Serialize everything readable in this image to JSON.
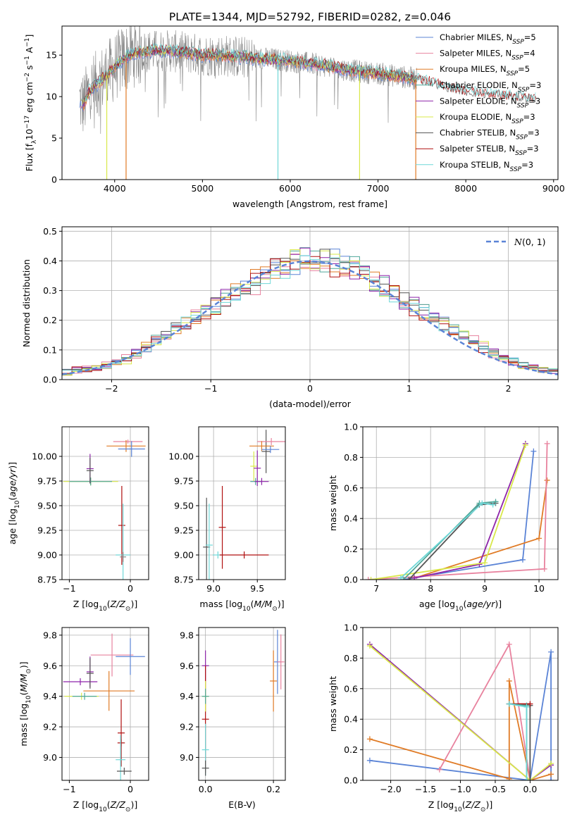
{
  "title": "PLATE=1344, MJD=52792, FIBERID=0282, z=0.046",
  "colors": {
    "blue": "#5b84d6",
    "pink": "#e8829e",
    "orange": "#e07b26",
    "teal": "#4fa89a",
    "purple": "#8e24aa",
    "yellow": "#d9e84a",
    "gray": "#555555",
    "red": "#b01010",
    "cyan": "#6fd8d8"
  },
  "chart_data": [
    {
      "id": "spectrum",
      "type": "line",
      "title": "PLATE=1344, MJD=52792, FIBERID=0282, z=0.046",
      "xlabel": "wavelength [Angstrom, rest frame]",
      "ylabel": "Flux [f",
      "xlim": [
        3400,
        9050
      ],
      "ylim": [
        0,
        18.5
      ],
      "xticks": [
        4000,
        5000,
        6000,
        7000,
        8000,
        9000
      ],
      "yticks": [
        0,
        5,
        10,
        15
      ],
      "grid": false,
      "legend_position": "top-right",
      "legend": [
        {
          "label": "Chabrier MILES, N",
          "suffix": "=5",
          "color": "#5b84d6"
        },
        {
          "label": "Salpeter MILES, N",
          "suffix": "=4",
          "color": "#e8829e"
        },
        {
          "label": "Kroupa MILES, N",
          "suffix": "=5",
          "color": "#e07b26"
        },
        {
          "label": "Chabrier ELODIE, N",
          "suffix": "=3",
          "color": "#4fa89a"
        },
        {
          "label": "Salpeter ELODIE, N",
          "suffix": "=3",
          "color": "#8e24aa"
        },
        {
          "label": "Kroupa ELODIE, N",
          "suffix": "=3",
          "color": "#d9e84a"
        },
        {
          "label": "Chabrier STELIB, N",
          "suffix": "=3",
          "color": "#555555"
        },
        {
          "label": "Salpeter STELIB, N",
          "suffix": "=3",
          "color": "#b01010"
        },
        {
          "label": "Kroupa STELIB, N",
          "suffix": "=3",
          "color": "#6fd8d8"
        }
      ],
      "observed": {
        "x_start": 3600,
        "x_end": 7440,
        "color": "#888888"
      },
      "model_envelope": {
        "x": [
          3600,
          3650,
          3700,
          3800,
          3900,
          4000,
          4100,
          4200,
          4400,
          4600,
          4800,
          5000,
          5200,
          5400,
          5600,
          5800,
          6000,
          6200,
          6400,
          6600,
          6800,
          7000,
          7200,
          7400,
          7600,
          7800,
          8000,
          8200,
          8400,
          8600,
          8800
        ],
        "y": [
          9.5,
          9.0,
          10.5,
          11.5,
          12.5,
          13.5,
          14.5,
          15.2,
          15.5,
          15.5,
          15.3,
          15.0,
          15.0,
          14.8,
          14.6,
          14.5,
          14.3,
          14.0,
          13.7,
          13.3,
          13.0,
          12.8,
          12.5,
          12.2,
          11.6,
          11.0,
          10.5,
          10.2,
          10.0,
          9.8,
          9.6
        ]
      },
      "model_dropouts_x": [
        3910,
        4130,
        5860,
        6790,
        7430
      ]
    },
    {
      "id": "residuals",
      "type": "line",
      "xlabel": "(data-model)/error",
      "ylabel": "Normed distribution",
      "xlim": [
        -2.5,
        2.5
      ],
      "ylim": [
        0,
        0.515
      ],
      "xticks": [
        -2,
        -1,
        0,
        1,
        2
      ],
      "yticks": [
        0.0,
        0.1,
        0.2,
        0.3,
        0.4,
        0.5
      ],
      "grid": true,
      "legend_position": "top-right",
      "legend": [
        {
          "label": "(0, 1)",
          "symbol": "N",
          "color": "#5b84d6",
          "style": "dashed"
        }
      ],
      "bin_width": 0.1,
      "base_hist": [
        0.025,
        0.03,
        0.035,
        0.04,
        0.05,
        0.06,
        0.07,
        0.09,
        0.11,
        0.13,
        0.15,
        0.17,
        0.19,
        0.21,
        0.23,
        0.25,
        0.27,
        0.29,
        0.31,
        0.33,
        0.35,
        0.37,
        0.38,
        0.39,
        0.4,
        0.4,
        0.4,
        0.39,
        0.38,
        0.37,
        0.35,
        0.33,
        0.31,
        0.29,
        0.27,
        0.25,
        0.23,
        0.21,
        0.19,
        0.17,
        0.15,
        0.13,
        0.11,
        0.09,
        0.075,
        0.06,
        0.05,
        0.04,
        0.035,
        0.03
      ],
      "series_colors": [
        "#5b84d6",
        "#e8829e",
        "#e07b26",
        "#4fa89a",
        "#8e24aa",
        "#d9e84a",
        "#555555",
        "#b01010",
        "#6fd8d8"
      ]
    },
    {
      "id": "age-vs-Z",
      "type": "scatter",
      "xlabel": "Z [log",
      "ylabel": "age  [log",
      "xlim": [
        -1.12,
        0.3
      ],
      "ylim": [
        8.75,
        10.3
      ],
      "xticks": [
        -1,
        0
      ],
      "yticks": [
        8.75,
        9.0,
        9.25,
        9.5,
        9.75,
        10.0
      ],
      "grid": true,
      "points": [
        {
          "x": -0.65,
          "y": 9.745,
          "xerr": 0.45,
          "yerr": 0.04,
          "color": "#d9e84a"
        },
        {
          "x": -0.65,
          "y": 9.745,
          "xerr": 0.35,
          "yerr": 0.04,
          "color": "#4fa89a"
        },
        {
          "x": -0.66,
          "y": 9.875,
          "xerr": 0.0,
          "yerr": 0.15,
          "color": "#8e24aa"
        },
        {
          "x": -0.66,
          "y": 9.855,
          "xerr": 0.0,
          "yerr": 0.13,
          "color": "#555555"
        },
        {
          "x": -0.04,
          "y": 10.15,
          "xerr": 0.24,
          "yerr": 0.02,
          "color": "#e8829e"
        },
        {
          "x": -0.07,
          "y": 10.105,
          "xerr": 0.32,
          "yerr": 0.06,
          "color": "#e07b26"
        },
        {
          "x": 0.02,
          "y": 10.075,
          "xerr": 0.22,
          "yerr": 0.08,
          "color": "#5b84d6"
        },
        {
          "x": -0.14,
          "y": 9.3,
          "xerr": 0.0,
          "yerr": 0.4,
          "color": "#b01010"
        },
        {
          "x": -0.12,
          "y": 9.0,
          "xerr": 0.12,
          "yerr": 0.52,
          "color": "#6fd8d8"
        },
        {
          "x": -0.12,
          "y": 8.98,
          "xerr": 0.05,
          "yerr": 0.05,
          "color": "#888888"
        }
      ]
    },
    {
      "id": "age-vs-mass",
      "type": "scatter",
      "xlabel": "mass [log",
      "ylabel": "",
      "xlim": [
        8.83,
        9.82
      ],
      "ylim": [
        8.75,
        10.3
      ],
      "xticks": [
        9.0,
        9.5
      ],
      "yticks": [
        8.75,
        9.0,
        9.25,
        9.5,
        9.75,
        10.0
      ],
      "grid": true,
      "points": [
        {
          "x": 8.92,
          "y": 9.08,
          "xerr": 0.0,
          "yerr": 0.5,
          "color": "#555555"
        },
        {
          "x": 8.95,
          "y": 9.1,
          "xerr": 0.0,
          "yerr": 0.42,
          "color": "#6fd8d8"
        },
        {
          "x": 9.1,
          "y": 9.28,
          "xerr": 0.0,
          "yerr": 0.42,
          "color": "#b01010"
        },
        {
          "x": 9.05,
          "y": 9.0,
          "xerr": 0.06,
          "yerr": 0.0,
          "color": "#6fd8d8"
        },
        {
          "x": 9.35,
          "y": 9.0,
          "xerr": 0.28,
          "yerr": 0.0,
          "color": "#b01010"
        },
        {
          "x": 9.46,
          "y": 9.9,
          "xerr": 0.0,
          "yerr": 0.15,
          "color": "#d9e84a"
        },
        {
          "x": 9.48,
          "y": 9.745,
          "xerr": 0.06,
          "yerr": 0.0,
          "color": "#4fa89a"
        },
        {
          "x": 9.55,
          "y": 9.745,
          "xerr": 0.08,
          "yerr": 0.0,
          "color": "#8e24aa"
        },
        {
          "x": 9.5,
          "y": 9.88,
          "xerr": 0.0,
          "yerr": 0.18,
          "color": "#8e24aa"
        },
        {
          "x": 9.6,
          "y": 10.05,
          "xerr": 0.05,
          "yerr": 0.22,
          "color": "#555555"
        },
        {
          "x": 9.66,
          "y": 10.15,
          "xerr": 0.16,
          "yerr": 0.0,
          "color": "#e8829e"
        },
        {
          "x": 9.55,
          "y": 10.105,
          "xerr": 0.14,
          "yerr": 0.05,
          "color": "#e07b26"
        },
        {
          "x": 9.65,
          "y": 10.07,
          "xerr": 0.1,
          "yerr": 0.0,
          "color": "#5b84d6"
        }
      ]
    },
    {
      "id": "mass-weight-vs-age",
      "type": "line",
      "xlabel": "age  [log",
      "ylabel": "mass weight",
      "xlim": [
        6.75,
        10.35
      ],
      "ylim": [
        0,
        1.0
      ],
      "xticks": [
        7,
        8,
        9,
        10
      ],
      "yticks": [
        0.0,
        0.2,
        0.4,
        0.6,
        0.8,
        1.0
      ],
      "grid": true,
      "series": [
        {
          "color": "#5b84d6",
          "x": [
            7.5,
            9.7,
            9.9
          ],
          "y": [
            0.0,
            0.13,
            0.84
          ]
        },
        {
          "color": "#e07b26",
          "x": [
            7.7,
            10.0,
            10.15
          ],
          "y": [
            0.01,
            0.27,
            0.65
          ]
        },
        {
          "color": "#e8829e",
          "x": [
            6.85,
            10.1,
            10.15
          ],
          "y": [
            0.0,
            0.07,
            0.89
          ]
        },
        {
          "color": "#8e24aa",
          "x": [
            7.7,
            8.9,
            9.75
          ],
          "y": [
            0.01,
            0.1,
            0.89
          ]
        },
        {
          "color": "#d9e84a",
          "x": [
            6.9,
            9.0,
            9.75
          ],
          "y": [
            0.0,
            0.11,
            0.88
          ]
        },
        {
          "color": "#555555",
          "x": [
            7.6,
            8.9,
            9.2
          ],
          "y": [
            0.0,
            0.49,
            0.5
          ]
        },
        {
          "color": "#4fa89a",
          "x": [
            7.5,
            8.9,
            9.2
          ],
          "y": [
            0.0,
            0.5,
            0.51
          ]
        },
        {
          "color": "#6fd8d8",
          "x": [
            7.45,
            8.95,
            9.15
          ],
          "y": [
            0.01,
            0.5,
            0.49
          ]
        }
      ]
    },
    {
      "id": "mass-vs-Z",
      "type": "scatter",
      "xlabel": "Z [log",
      "ylabel": "mass [log",
      "xlim": [
        -1.12,
        0.3
      ],
      "ylim": [
        8.85,
        9.85
      ],
      "xticks": [
        -1,
        0
      ],
      "yticks": [
        9.0,
        9.2,
        9.4,
        9.6,
        9.8
      ],
      "grid": true,
      "points": [
        {
          "x": -0.82,
          "y": 9.495,
          "xerr": 0.28,
          "yerr": 0.0,
          "color": "#8e24aa"
        },
        {
          "x": -0.66,
          "y": 9.56,
          "xerr": 0.0,
          "yerr": 0.1,
          "color": "#8e24aa"
        },
        {
          "x": -0.8,
          "y": 9.4,
          "xerr": 0.28,
          "yerr": 0.0,
          "color": "#d9e84a"
        },
        {
          "x": -0.75,
          "y": 9.4,
          "xerr": 0.2,
          "yerr": 0.0,
          "color": "#4fa89a"
        },
        {
          "x": -0.66,
          "y": 9.55,
          "xerr": 0.0,
          "yerr": 0.1,
          "color": "#555555"
        },
        {
          "x": -0.35,
          "y": 9.435,
          "xerr": 0.42,
          "yerr": 0.13,
          "color": "#e07b26"
        },
        {
          "x": -0.3,
          "y": 9.67,
          "xerr": 0.35,
          "yerr": 0.14,
          "color": "#e8829e"
        },
        {
          "x": 0.0,
          "y": 9.66,
          "xerr": 0.24,
          "yerr": 0.12,
          "color": "#5b84d6"
        },
        {
          "x": -0.15,
          "y": 9.16,
          "xerr": 0.0,
          "yerr": 0.22,
          "color": "#b01010"
        },
        {
          "x": -0.15,
          "y": 9.095,
          "xerr": 0.06,
          "yerr": 0.0,
          "color": "#b01010"
        },
        {
          "x": -0.16,
          "y": 8.985,
          "xerr": 0.08,
          "yerr": 0.16,
          "color": "#6fd8d8"
        },
        {
          "x": -0.1,
          "y": 8.91,
          "xerr": 0.12,
          "yerr": 0.0,
          "color": "#555555"
        }
      ]
    },
    {
      "id": "mass-vs-ebv",
      "type": "scatter",
      "xlabel": "E(B-V)",
      "ylabel": "",
      "xlim": [
        -0.02,
        0.235
      ],
      "ylim": [
        8.85,
        9.85
      ],
      "xticks": [
        0.0,
        0.2
      ],
      "yticks": [
        9.0,
        9.2,
        9.4,
        9.6,
        9.8
      ],
      "grid": true,
      "points": [
        {
          "x": 0.0,
          "y": 9.6,
          "xerr": 0.0,
          "yerr": 0.1,
          "color": "#8e24aa"
        },
        {
          "x": 0.0,
          "y": 9.25,
          "xerr": 0.0,
          "yerr": 0.35,
          "color": "#b01010"
        },
        {
          "x": 0.0,
          "y": 9.4,
          "xerr": 0.0,
          "yerr": 0.1,
          "color": "#d9e84a"
        },
        {
          "x": 0.0,
          "y": 9.05,
          "xerr": 0.0,
          "yerr": 0.17,
          "color": "#6fd8d8"
        },
        {
          "x": 0.0,
          "y": 8.93,
          "xerr": 0.0,
          "yerr": 0.05,
          "color": "#555555"
        },
        {
          "x": 0.0,
          "y": 9.4,
          "xerr": 0.0,
          "yerr": 0.05,
          "color": "#4fa89a"
        },
        {
          "x": 0.2,
          "y": 9.5,
          "xerr": 0.0,
          "yerr": 0.2,
          "color": "#e07b26"
        },
        {
          "x": 0.212,
          "y": 9.625,
          "xerr": 0.0,
          "yerr": 0.21,
          "color": "#5b84d6"
        },
        {
          "x": 0.222,
          "y": 9.625,
          "xerr": 0.0,
          "yerr": 0.18,
          "color": "#e8829e"
        }
      ]
    },
    {
      "id": "mass-weight-vs-Z",
      "type": "line",
      "xlabel": "Z [log",
      "ylabel": "mass weight",
      "xlim": [
        -2.4,
        0.4
      ],
      "ylim": [
        0,
        1.0
      ],
      "xticks": [
        -2.0,
        -1.5,
        -1.0,
        -0.5,
        0.0
      ],
      "xtick_labels": [
        "−2.0",
        "−1.5",
        "−1.0",
        "−0.5",
        "0.0"
      ],
      "yticks": [
        0.0,
        0.2,
        0.4,
        0.6,
        0.8,
        1.0
      ],
      "grid": true,
      "series": [
        {
          "color": "#5b84d6",
          "x": [
            -2.3,
            0.0,
            0.3,
            0.3
          ],
          "y": [
            0.13,
            0.0,
            0.84,
            0.0
          ]
        },
        {
          "color": "#e07b26",
          "x": [
            -2.3,
            -0.3,
            -0.3,
            0.0,
            0.3
          ],
          "y": [
            0.27,
            0.01,
            0.65,
            0.0,
            0.04
          ]
        },
        {
          "color": "#e8829e",
          "x": [
            -1.3,
            -0.3,
            0.0
          ],
          "y": [
            0.07,
            0.89,
            0.0
          ]
        },
        {
          "color": "#8e24aa",
          "x": [
            -2.3,
            0.0,
            0.3
          ],
          "y": [
            0.89,
            0.0,
            0.1
          ]
        },
        {
          "color": "#d9e84a",
          "x": [
            -2.3,
            0.0,
            0.3
          ],
          "y": [
            0.88,
            0.0,
            0.11
          ]
        },
        {
          "color": "#555555",
          "x": [
            -0.3,
            0.0,
            0.0
          ],
          "y": [
            0.5,
            0.49,
            0.0
          ]
        },
        {
          "color": "#b01010",
          "x": [
            -0.3,
            0.0
          ],
          "y": [
            0.5,
            0.5
          ]
        },
        {
          "color": "#4fa89a",
          "x": [
            -0.3,
            -0.05,
            -0.05
          ],
          "y": [
            0.5,
            0.49,
            0.0
          ]
        },
        {
          "color": "#6fd8d8",
          "x": [
            -0.3,
            -0.05,
            -0.05
          ],
          "y": [
            0.5,
            0.48,
            0.0
          ]
        }
      ]
    }
  ]
}
